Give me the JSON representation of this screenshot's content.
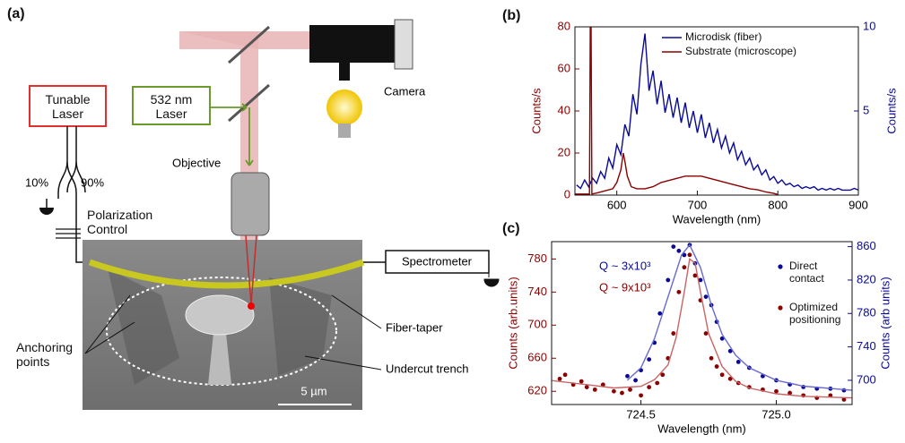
{
  "diagram": {
    "label": "(a)",
    "tunable_laser": "Tunable Laser",
    "green_laser": "532 nm Laser",
    "camera": "Camera",
    "objective": "Objective",
    "split_left": "10%",
    "split_right": "90%",
    "polarization": "Polarization Control",
    "spectrometer": "Spectrometer",
    "fiber_taper": "Fiber-taper",
    "anchoring": "Anchoring points",
    "trench": "Undercut trench",
    "scale_bar": "5 µm"
  },
  "chart_data": [
    {
      "type": "line",
      "label": "(b)",
      "xlabel": "Wavelength (nm)",
      "ylabel": "Counts/s",
      "y2label": "Counts/s",
      "xlim": [
        548,
        900
      ],
      "xticks": [
        600,
        700,
        800,
        900
      ],
      "ylim": [
        0,
        80
      ],
      "yticks": [
        0,
        20,
        40,
        60,
        80
      ],
      "y2lim": [
        0,
        10
      ],
      "y2ticks": [
        5,
        10
      ],
      "legend": "upper right",
      "series": [
        {
          "name": "Microdisk (fiber)",
          "color": "#0a0a96",
          "axis": "y2",
          "style": "line",
          "x": [
            550,
            555,
            560,
            565,
            570,
            575,
            580,
            585,
            590,
            595,
            600,
            605,
            610,
            615,
            620,
            625,
            630,
            635,
            640,
            645,
            650,
            655,
            660,
            665,
            670,
            675,
            680,
            685,
            690,
            695,
            700,
            705,
            710,
            715,
            720,
            725,
            730,
            735,
            740,
            745,
            750,
            755,
            760,
            765,
            770,
            775,
            780,
            785,
            790,
            795,
            800,
            805,
            810,
            815,
            820,
            825,
            830,
            835,
            840,
            845,
            850,
            855,
            860,
            865,
            870,
            875,
            880,
            885,
            890,
            895,
            900
          ],
          "values": [
            0.6,
            0.4,
            0.9,
            0.5,
            1.0,
            0.7,
            1.4,
            1.0,
            2.2,
            1.6,
            3.0,
            2.4,
            4.2,
            3.5,
            6.0,
            4.8,
            7.8,
            9.6,
            6.2,
            7.4,
            5.4,
            6.8,
            4.9,
            6.0,
            4.6,
            5.8,
            4.3,
            5.5,
            4.0,
            5.0,
            3.7,
            4.8,
            3.4,
            4.3,
            3.1,
            3.9,
            2.8,
            3.5,
            2.5,
            3.1,
            2.1,
            2.6,
            1.8,
            2.2,
            1.5,
            1.8,
            1.2,
            1.5,
            0.9,
            1.1,
            0.7,
            0.9,
            0.6,
            0.7,
            0.5,
            0.6,
            0.4,
            0.5,
            0.4,
            0.5,
            0.3,
            0.4,
            0.3,
            0.4,
            0.3,
            0.4,
            0.3,
            0.3,
            0.3,
            0.4,
            0.3
          ]
        },
        {
          "name": "Substrate (microscope)",
          "color": "#8b0000",
          "axis": "y",
          "style": "line",
          "x": [
            548,
            560,
            566,
            567,
            568,
            569,
            575,
            585,
            595,
            600,
            605,
            608,
            610,
            613,
            618,
            625,
            635,
            645,
            655,
            665,
            675,
            685,
            695,
            705,
            715,
            725,
            735,
            745,
            755,
            765,
            775,
            785,
            795,
            800
          ],
          "values": [
            0.5,
            0.5,
            0.5,
            80,
            80,
            0.5,
            1,
            2,
            3,
            6,
            12,
            20,
            16,
            9,
            4,
            3,
            3,
            4,
            6,
            7,
            8,
            9,
            9,
            9,
            8,
            7,
            6,
            5,
            4,
            3,
            2.5,
            1.5,
            0.8,
            0.3
          ]
        }
      ]
    },
    {
      "type": "scatter",
      "label": "(c)",
      "xlabel": "Wavelength (nm)",
      "ylabel": "Counts (arb.units)",
      "y2label": "Counts (arb units)",
      "xlim": [
        724.17,
        725.28
      ],
      "xticks": [
        724.5,
        {
          "value": 725,
          "label": "725.0"
        }
      ],
      "ylim": [
        604,
        801
      ],
      "yticks": [
        620,
        660,
        700,
        740,
        780
      ],
      "y2lim": [
        671,
        866
      ],
      "y2ticks": [
        700,
        740,
        780,
        820,
        860
      ],
      "legend": "upper right",
      "annotations": [
        {
          "text": "Q ~ 3x10³",
          "color": "#0a0a96"
        },
        {
          "text": "Q ~ 9x10³",
          "color": "#8b0000"
        }
      ],
      "series": [
        {
          "name": "Direct contact",
          "color": "#0a0a96",
          "axis": "y2",
          "style": "scatter",
          "x": [
            724.45,
            724.48,
            724.5,
            724.53,
            724.55,
            724.57,
            724.6,
            724.62,
            724.64,
            724.66,
            724.68,
            724.7,
            724.72,
            724.74,
            724.76,
            724.78,
            724.8,
            724.83,
            724.86,
            724.9,
            724.95,
            725.0,
            725.05,
            725.1,
            725.15,
            725.2,
            725.25
          ],
          "values": [
            705,
            700,
            712,
            725,
            745,
            780,
            820,
            860,
            855,
            850,
            862,
            840,
            820,
            800,
            790,
            770,
            750,
            735,
            722,
            715,
            705,
            700,
            695,
            692,
            690,
            690,
            688
          ]
        },
        {
          "name": "Optimized positioning",
          "color": "#8b0000",
          "axis": "y",
          "style": "scatter",
          "x": [
            724.2,
            724.22,
            724.25,
            724.28,
            724.3,
            724.33,
            724.36,
            724.4,
            724.43,
            724.46,
            724.5,
            724.53,
            724.56,
            724.58,
            724.6,
            724.62,
            724.64,
            724.66,
            724.68,
            724.7,
            724.72,
            724.74,
            724.76,
            724.78,
            724.8,
            724.83,
            724.86,
            724.9,
            724.95,
            725.0,
            725.05,
            725.1,
            725.15,
            725.2,
            725.25
          ],
          "values": [
            635,
            640,
            628,
            632,
            625,
            622,
            628,
            620,
            618,
            622,
            615,
            625,
            630,
            640,
            660,
            690,
            740,
            770,
            785,
            760,
            730,
            690,
            660,
            650,
            640,
            635,
            630,
            625,
            622,
            620,
            618,
            615,
            612,
            615,
            610
          ]
        },
        {
          "color": "#6a6acd",
          "axis": "y2",
          "style": "line",
          "x": [
            724.45,
            724.5,
            724.55,
            724.6,
            724.65,
            724.68,
            724.72,
            724.76,
            724.8,
            724.85,
            724.9,
            725.0,
            725.1,
            725.28
          ],
          "values": [
            700,
            715,
            750,
            800,
            850,
            862,
            835,
            790,
            755,
            730,
            715,
            700,
            693,
            688
          ]
        },
        {
          "color": "#c86464",
          "axis": "y",
          "style": "line",
          "x": [
            724.17,
            724.3,
            724.4,
            724.5,
            724.55,
            724.6,
            724.63,
            724.66,
            724.68,
            724.7,
            724.72,
            724.75,
            724.8,
            724.85,
            724.9,
            725.0,
            725.1,
            725.28
          ],
          "values": [
            633,
            628,
            624,
            626,
            634,
            652,
            685,
            740,
            780,
            775,
            740,
            690,
            650,
            632,
            624,
            617,
            614,
            612
          ]
        }
      ]
    }
  ]
}
